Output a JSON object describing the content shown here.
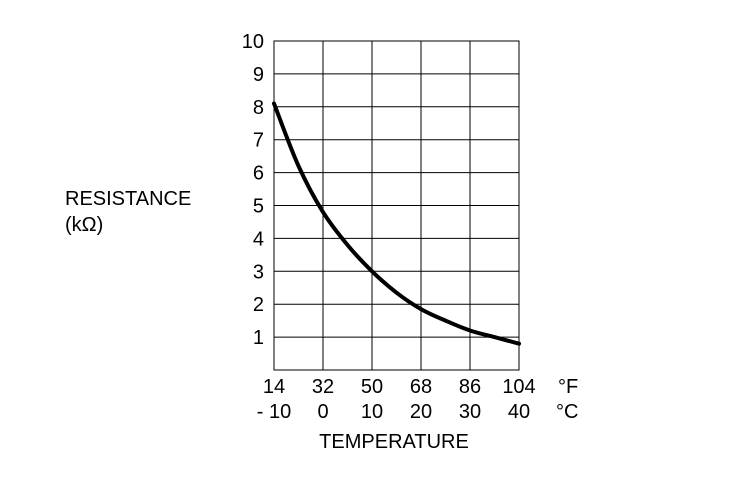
{
  "chart_data": {
    "type": "line",
    "title": "",
    "ylabel_line1": "RESISTANCE",
    "ylabel_line2": "(kΩ)",
    "xlabel": "TEMPERATURE",
    "x_unit_f": "°F",
    "x_unit_c": "°C",
    "x_ticks_f": [
      "14",
      "32",
      "50",
      "68",
      "86",
      "104"
    ],
    "x_ticks_c": [
      "- 10",
      "0",
      "10",
      "20",
      "30",
      "40"
    ],
    "y_ticks": [
      "1",
      "2",
      "3",
      "4",
      "5",
      "6",
      "7",
      "8",
      "9",
      "10"
    ],
    "xlim_c": [
      -10,
      40
    ],
    "ylim": [
      0,
      10
    ],
    "grid": true,
    "series": [
      {
        "x": [
          -10,
          -5,
          0,
          5,
          10,
          15,
          20,
          25,
          30,
          35,
          40
        ],
        "values": [
          8.1,
          6.2,
          4.8,
          3.8,
          3.0,
          2.35,
          1.85,
          1.5,
          1.2,
          1.0,
          0.8
        ]
      }
    ]
  }
}
